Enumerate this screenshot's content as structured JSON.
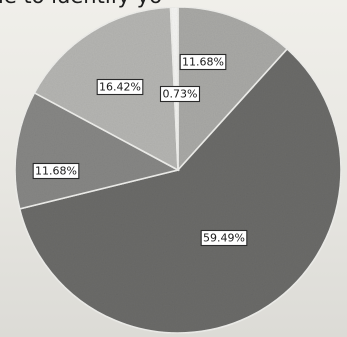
{
  "header": {
    "partial_text": "le to identify yo"
  },
  "chart_data": {
    "type": "pie",
    "title": "",
    "start_angle_deg": 0,
    "direction": "clockwise",
    "slices": [
      {
        "label": "11.68%",
        "value": 11.68,
        "color": "#a9a9a6"
      },
      {
        "label": "59.49%",
        "value": 59.49,
        "color": "#6b6b69"
      },
      {
        "label": "11.68%",
        "value": 11.68,
        "color": "#878785"
      },
      {
        "label": "16.42%",
        "value": 16.42,
        "color": "#b5b5b2"
      },
      {
        "label": "0.73%",
        "value": 0.73,
        "color": "#f4f4f2"
      }
    ],
    "colors": {
      "outline": "#efefec",
      "label_box": "#ffffff",
      "label_border": "#2a2a2a"
    }
  }
}
